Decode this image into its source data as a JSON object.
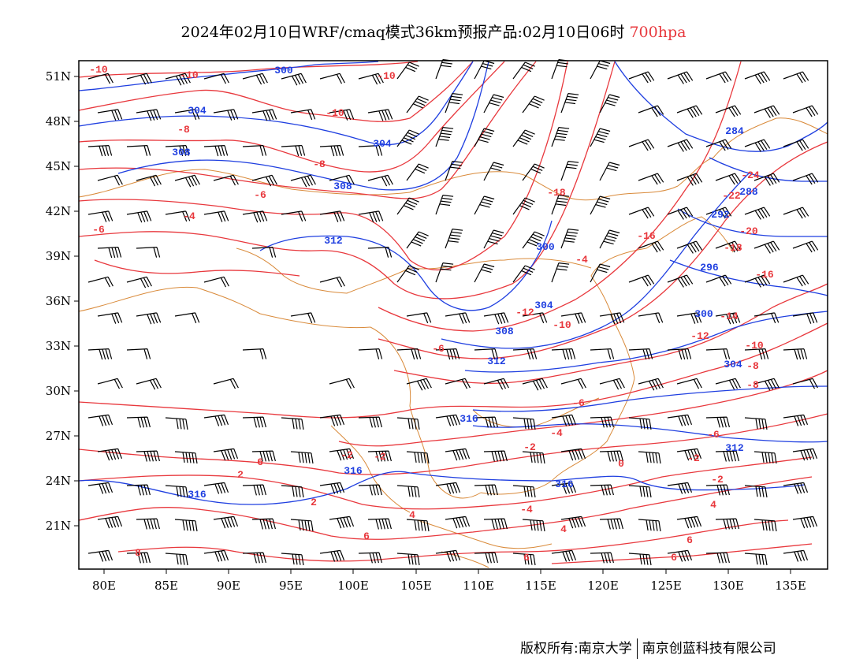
{
  "title": {
    "main": "2024年02月10日WRF/cmaq模式36km预报产品:02月10日06时",
    "level": "700hpa"
  },
  "axes": {
    "lat_labels": [
      "51N",
      "48N",
      "45N",
      "42N",
      "39N",
      "36N",
      "33N",
      "30N",
      "27N",
      "24N",
      "21N"
    ],
    "lon_labels": [
      "80E",
      "85E",
      "90E",
      "95E",
      "100E",
      "105E",
      "110E",
      "115E",
      "120E",
      "125E",
      "130E",
      "135E"
    ]
  },
  "colors": {
    "temperature": "#e8383d",
    "geopotential": "#1f3fe0",
    "border": "#d98a3a",
    "barbs": "#000000"
  },
  "contour_labels": {
    "temperature": [
      "-10",
      "-10",
      "-10",
      "-10",
      "-8",
      "-8",
      "-6",
      "-4",
      "-6",
      "-18",
      "-16",
      "-4",
      "-24",
      "-22",
      "-20",
      "-18",
      "-16",
      "-14",
      "-12",
      "-12",
      "-10",
      "-10",
      "-8",
      "-6",
      "-6",
      "-8",
      "-6",
      "-4",
      "-2",
      "-2",
      "-2",
      "-2",
      "-2",
      "-4",
      "0",
      "2",
      "2",
      "4",
      "4",
      "4",
      "6",
      "6",
      "6",
      "6",
      "6",
      "8"
    ],
    "geopotential": [
      "300",
      "304",
      "304",
      "308",
      "308",
      "312",
      "300",
      "304",
      "308",
      "312",
      "316",
      "316",
      "316",
      "316",
      "312",
      "284",
      "288",
      "292",
      "296",
      "300",
      "304"
    ]
  },
  "footer": {
    "left": "版权所有:南京大学",
    "right": "南京创蓝科技有限公司"
  }
}
